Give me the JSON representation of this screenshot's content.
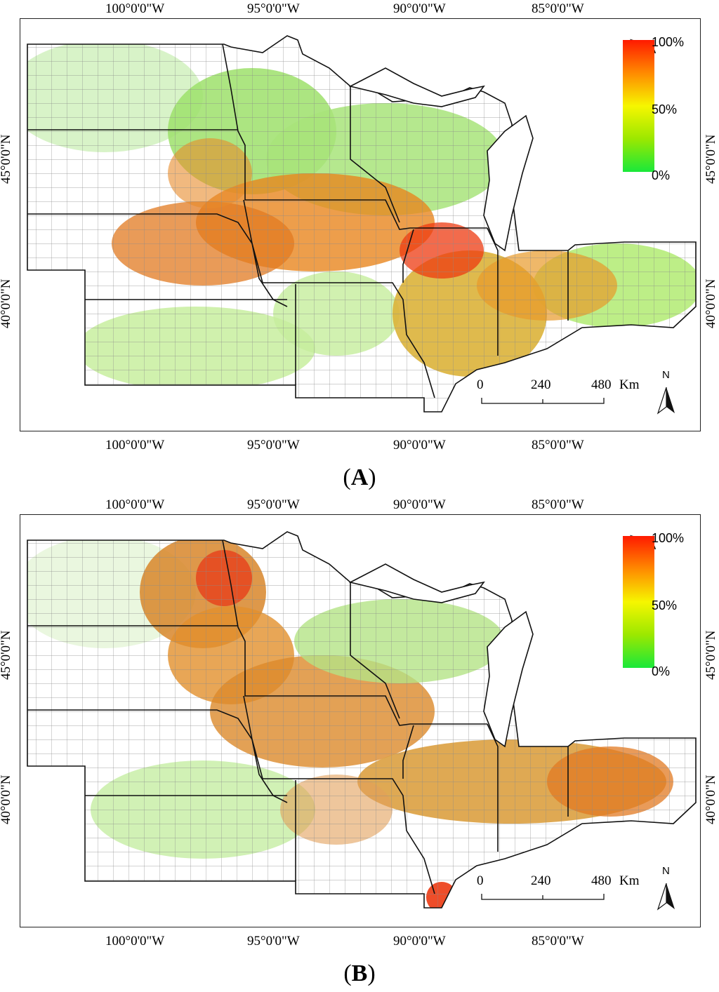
{
  "panels": [
    {
      "id": "A",
      "label_open": "(",
      "label": "A",
      "label_close": ")",
      "longitude_labels": [
        "100°0'0\"W",
        "95°0'0\"W",
        "90°0'0\"W",
        "85°0'0\"W"
      ],
      "latitude_labels": [
        "45°0'0\"N",
        "40°0'0\"N"
      ],
      "legend": {
        "max": "100%",
        "mid": "50%",
        "min": "0%",
        "colors": [
          "#ff1a00",
          "#ff8a00",
          "#f6f600",
          "#9be800",
          "#19e83a"
        ]
      },
      "scale_bar": {
        "ticks": [
          "0",
          "240",
          "480"
        ],
        "unit": "Km"
      },
      "north_arrow": "N"
    },
    {
      "id": "B",
      "label_open": "(",
      "label": "B",
      "label_close": ")",
      "longitude_labels": [
        "100°0'0\"W",
        "95°0'0\"W",
        "90°0'0\"W",
        "85°0'0\"W"
      ],
      "latitude_labels": [
        "45°0'0\"N",
        "40°0'0\"N"
      ],
      "legend": {
        "max": "100%",
        "mid": "50%",
        "min": "0%",
        "colors": [
          "#ff1a00",
          "#ff8a00",
          "#f6f600",
          "#9be800",
          "#19e83a"
        ]
      },
      "scale_bar": {
        "ticks": [
          "0",
          "240",
          "480"
        ],
        "unit": "Km"
      },
      "north_arrow": "N"
    }
  ]
}
